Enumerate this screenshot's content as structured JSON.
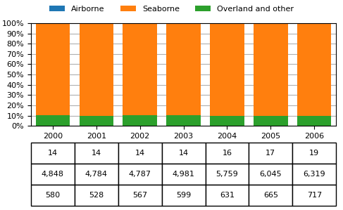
{
  "chart_data": {
    "type": "bar",
    "stacked": true,
    "categories": [
      "2000",
      "2001",
      "2002",
      "2003",
      "2004",
      "2005",
      "2006"
    ],
    "series": [
      {
        "name": "Airborne",
        "values": [
          0.2573,
          0.2629,
          0.2608,
          0.2503,
          0.2498,
          0.2527,
          0.2693
        ]
      },
      {
        "name": "Seaborne",
        "values": [
          89.0849,
          89.8235,
          89.1766,
          89.0418,
          89.9001,
          89.8618,
          89.5677
        ]
      },
      {
        "name": "Overland and other",
        "values": [
          10.6578,
          9.9136,
          10.5626,
          10.7079,
          9.8501,
          9.8855,
          10.163
        ]
      }
    ],
    "ylim": [
      0,
      100
    ],
    "yticks": [
      {
        "value": 0,
        "label": "0%"
      },
      {
        "value": 10,
        "label": "10%"
      },
      {
        "value": 20,
        "label": "20%"
      },
      {
        "value": 30,
        "label": "30%"
      },
      {
        "value": 40,
        "label": "40%"
      },
      {
        "value": 50,
        "label": "50%"
      },
      {
        "value": 60,
        "label": "60%"
      },
      {
        "value": 70,
        "label": "70%"
      },
      {
        "value": 80,
        "label": "80%"
      },
      {
        "value": 90,
        "label": "90%"
      },
      {
        "value": 100,
        "label": "100%"
      }
    ],
    "grid": true,
    "legend": "upper center",
    "table_rows": [
      [
        "14",
        "14",
        "14",
        "14",
        "16",
        "17",
        "19"
      ],
      [
        "4,848",
        "4,784",
        "4,787",
        "4,981",
        "5,759",
        "6,045",
        "6,319"
      ],
      [
        "580",
        "528",
        "567",
        "599",
        "631",
        "665",
        "717"
      ]
    ]
  }
}
